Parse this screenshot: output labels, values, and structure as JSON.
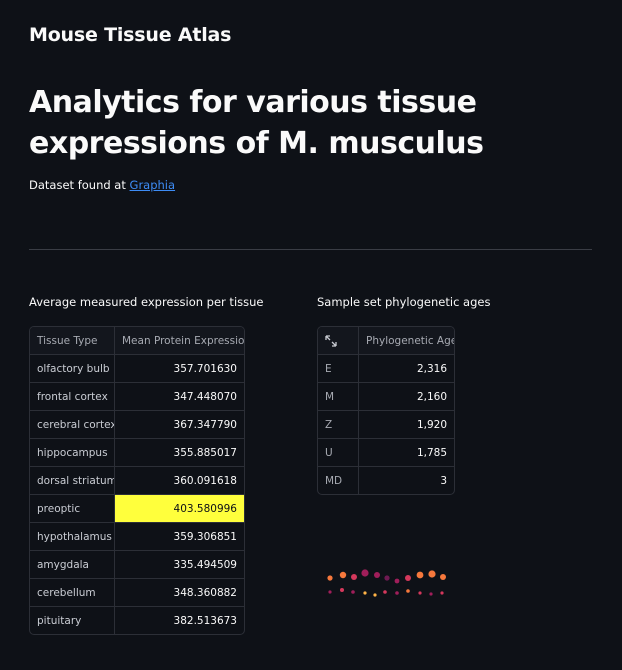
{
  "app_title": "Mouse Tissue Atlas",
  "heading": "Analytics for various tissue expressions of M. musculus",
  "dataset": {
    "prefix": "Dataset found at",
    "link_text": "Graphia"
  },
  "tissue_section": {
    "label": "Average measured expression per tissue",
    "columns": [
      "Tissue Type",
      "Mean Protein Expression"
    ],
    "rows": [
      {
        "tissue": "olfactory bulb",
        "value": "357.701630"
      },
      {
        "tissue": "frontal cortex",
        "value": "347.448070"
      },
      {
        "tissue": "cerebral cortex",
        "value": "367.347790"
      },
      {
        "tissue": "hippocampus",
        "value": "355.885017"
      },
      {
        "tissue": "dorsal striatum",
        "value": "360.091618"
      },
      {
        "tissue": "preoptic",
        "value": "403.580996"
      },
      {
        "tissue": "hypothalamus",
        "value": "359.306851"
      },
      {
        "tissue": "amygdala",
        "value": "335.494509"
      },
      {
        "tissue": "cerebellum",
        "value": "348.360882"
      },
      {
        "tissue": "pituitary",
        "value": "382.513673"
      }
    ],
    "highlight_color": "#ffff3c"
  },
  "phylo_section": {
    "label": "Sample set phylogenetic ages",
    "columns": [
      "",
      "Phylogenetic Age"
    ],
    "header_icon": "expand-icon",
    "rows": [
      {
        "key": "E",
        "value": "2,316"
      },
      {
        "key": "M",
        "value": "2,160"
      },
      {
        "key": "Z",
        "value": "1,920"
      },
      {
        "key": "U",
        "value": "1,785"
      },
      {
        "key": "MD",
        "value": "3"
      }
    ]
  },
  "colors": {
    "background": "#0e1117",
    "link": "#3d8cf5",
    "accent_orange": "#f6783c",
    "accent_magenta": "#a01e5a"
  }
}
